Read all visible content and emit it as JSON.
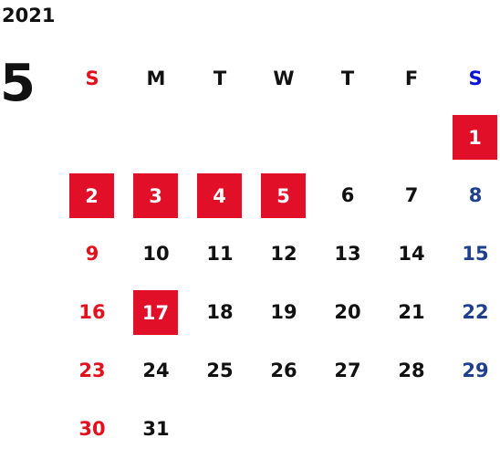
{
  "year": "2021",
  "month": "5",
  "colors": {
    "sunday": "#e5101e",
    "saturday": "#1f3f8f",
    "saturday_header": "#0b14d6",
    "weekday": "#111111",
    "holiday_bg": "#e10f28",
    "holiday_text": "#ffffff"
  },
  "weekday_headers": [
    "S",
    "M",
    "T",
    "W",
    "T",
    "F",
    "S"
  ],
  "first_weekday_index": 6,
  "days": [
    {
      "d": "1",
      "holiday": true
    },
    {
      "d": "2",
      "holiday": true
    },
    {
      "d": "3",
      "holiday": true
    },
    {
      "d": "4",
      "holiday": true
    },
    {
      "d": "5",
      "holiday": true
    },
    {
      "d": "6",
      "holiday": false
    },
    {
      "d": "7",
      "holiday": false
    },
    {
      "d": "8",
      "holiday": false
    },
    {
      "d": "9",
      "holiday": false
    },
    {
      "d": "10",
      "holiday": false
    },
    {
      "d": "11",
      "holiday": false
    },
    {
      "d": "12",
      "holiday": false
    },
    {
      "d": "13",
      "holiday": false
    },
    {
      "d": "14",
      "holiday": false
    },
    {
      "d": "15",
      "holiday": false
    },
    {
      "d": "16",
      "holiday": false
    },
    {
      "d": "17",
      "holiday": true
    },
    {
      "d": "18",
      "holiday": false
    },
    {
      "d": "19",
      "holiday": false
    },
    {
      "d": "20",
      "holiday": false
    },
    {
      "d": "21",
      "holiday": false
    },
    {
      "d": "22",
      "holiday": false
    },
    {
      "d": "23",
      "holiday": false
    },
    {
      "d": "24",
      "holiday": false
    },
    {
      "d": "25",
      "holiday": false
    },
    {
      "d": "26",
      "holiday": false
    },
    {
      "d": "27",
      "holiday": false
    },
    {
      "d": "28",
      "holiday": false
    },
    {
      "d": "29",
      "holiday": false
    },
    {
      "d": "30",
      "holiday": false
    },
    {
      "d": "31",
      "holiday": false
    }
  ]
}
